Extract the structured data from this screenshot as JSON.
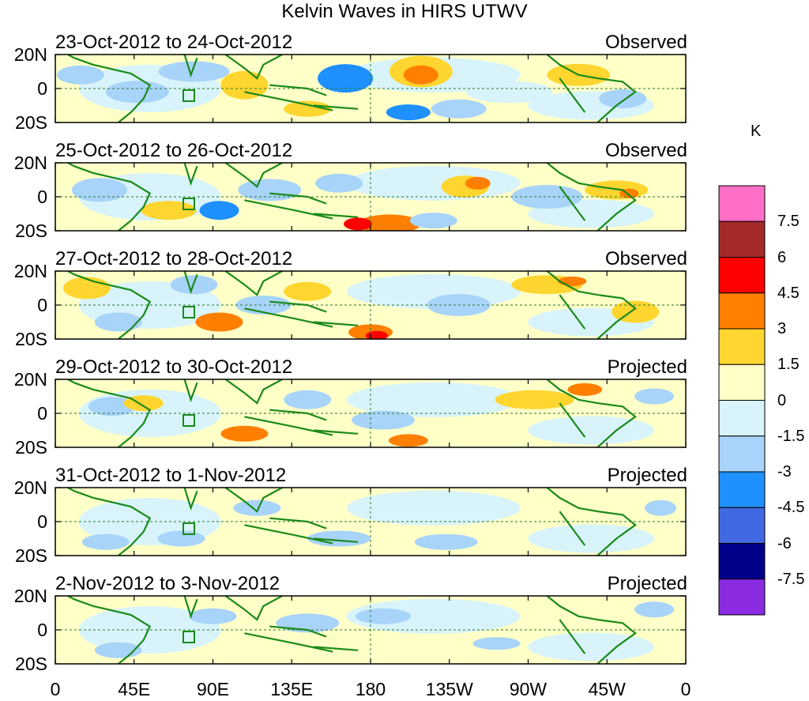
{
  "title": "Kelvin Waves in HIRS UTWV",
  "units": "K",
  "y_tick_labels": [
    "20N",
    "0",
    "20S"
  ],
  "x_tick_labels": [
    "0",
    "45E",
    "90E",
    "135E",
    "180",
    "135W",
    "90W",
    "45W",
    "0"
  ],
  "panels": [
    {
      "date_range": "23-Oct-2012 to 24-Oct-2012",
      "status": "Observed"
    },
    {
      "date_range": "25-Oct-2012 to 26-Oct-2012",
      "status": "Observed"
    },
    {
      "date_range": "27-Oct-2012 to 28-Oct-2012",
      "status": "Observed"
    },
    {
      "date_range": "29-Oct-2012 to 30-Oct-2012",
      "status": "Projected"
    },
    {
      "date_range": "31-Oct-2012 to 1-Nov-2012",
      "status": "Projected"
    },
    {
      "date_range": "2-Nov-2012 to 3-Nov-2012",
      "status": "Projected"
    }
  ],
  "colorbar": {
    "colors": [
      "#ff6ec7",
      "#a52a2a",
      "#ff0000",
      "#ff7f00",
      "#ffd530",
      "#ffffc8",
      "#d8f4fa",
      "#a8d4fa",
      "#1e90ff",
      "#4169e1",
      "#00008b",
      "#8a2be2"
    ],
    "tick_labels": [
      "7.5",
      "6",
      "4.5",
      "3",
      "1.5",
      "0",
      "-1.5",
      "-3",
      "-4.5",
      "-6",
      "-7.5"
    ]
  },
  "palette": {
    "coast": "#1a8a1a",
    "background_positive": "#ffffc8",
    "background_negative": "#d8f4fa"
  }
}
